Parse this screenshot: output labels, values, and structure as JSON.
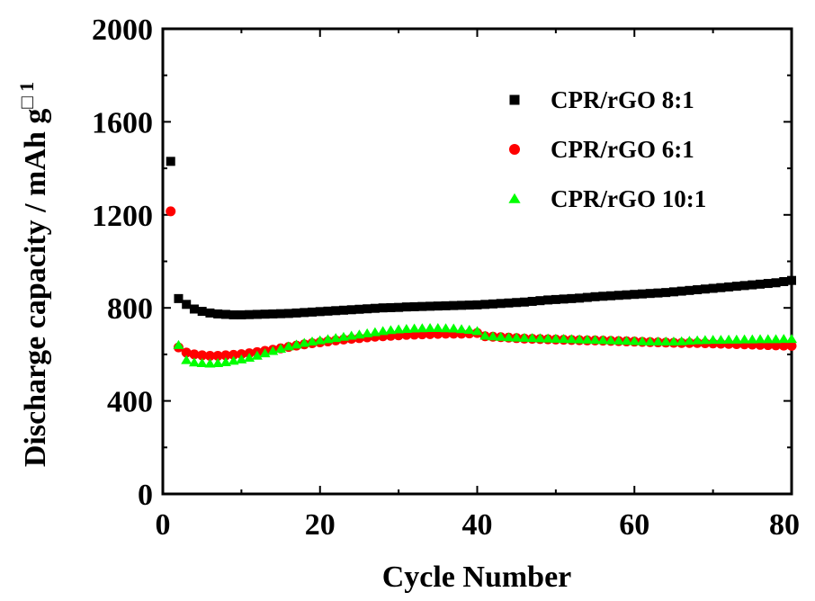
{
  "chart_data": {
    "type": "scatter",
    "xlabel": "Cycle Number",
    "ylabel": "Discharge capacity / mAh g",
    "ylabel_suffix": "□ 1",
    "xlim": [
      0,
      80
    ],
    "ylim": [
      0,
      2000
    ],
    "x_ticks": [
      0,
      20,
      40,
      60,
      80
    ],
    "y_ticks": [
      0,
      400,
      800,
      1200,
      1600,
      2000
    ],
    "x_tick_labels": [
      "0",
      "20",
      "40",
      "60",
      "80"
    ],
    "y_tick_labels": [
      "0",
      "400",
      "800",
      "1200",
      "1600",
      "2000"
    ],
    "grid": false,
    "legend_position": "top-right",
    "series": [
      {
        "name": "CPR/rGO 8:1",
        "marker": "square",
        "color": "#000000",
        "x": [
          1,
          2,
          3,
          4,
          5,
          6,
          7,
          8,
          9,
          10,
          11,
          12,
          13,
          14,
          15,
          16,
          17,
          18,
          19,
          20,
          21,
          22,
          23,
          24,
          25,
          26,
          27,
          28,
          29,
          30,
          31,
          32,
          33,
          34,
          35,
          36,
          37,
          38,
          39,
          40,
          41,
          42,
          43,
          44,
          45,
          46,
          47,
          48,
          49,
          50,
          51,
          52,
          53,
          54,
          55,
          56,
          57,
          58,
          59,
          60,
          61,
          62,
          63,
          64,
          65,
          66,
          67,
          68,
          69,
          70,
          71,
          72,
          73,
          74,
          75,
          76,
          77,
          78,
          79,
          80
        ],
        "y": [
          1430,
          840,
          815,
          795,
          785,
          778,
          774,
          772,
          770,
          770,
          771,
          772,
          773,
          774,
          775,
          776,
          778,
          780,
          782,
          784,
          786,
          788,
          790,
          792,
          794,
          796,
          798,
          800,
          801,
          802,
          804,
          805,
          806,
          807,
          808,
          809,
          810,
          811,
          812,
          813,
          815,
          817,
          819,
          821,
          823,
          825,
          828,
          831,
          834,
          836,
          838,
          840,
          842,
          845,
          848,
          850,
          852,
          854,
          856,
          858,
          860,
          862,
          864,
          866,
          869,
          872,
          875,
          878,
          881,
          884,
          887,
          890,
          893,
          896,
          899,
          902,
          905,
          908,
          913,
          918
        ]
      },
      {
        "name": "CPR/rGO 6:1",
        "marker": "circle",
        "color": "#ff0000",
        "x": [
          1,
          2,
          3,
          4,
          5,
          6,
          7,
          8,
          9,
          10,
          11,
          12,
          13,
          14,
          15,
          16,
          17,
          18,
          19,
          20,
          21,
          22,
          23,
          24,
          25,
          26,
          27,
          28,
          29,
          30,
          31,
          32,
          33,
          34,
          35,
          36,
          37,
          38,
          39,
          40,
          41,
          42,
          43,
          44,
          45,
          46,
          47,
          48,
          49,
          50,
          51,
          52,
          53,
          54,
          55,
          56,
          57,
          58,
          59,
          60,
          61,
          62,
          63,
          64,
          65,
          66,
          67,
          68,
          69,
          70,
          71,
          72,
          73,
          74,
          75,
          76,
          77,
          78,
          79,
          80
        ],
        "y": [
          1215,
          630,
          608,
          600,
          596,
          594,
          594,
          596,
          598,
          601,
          605,
          610,
          615,
          620,
          626,
          632,
          638,
          643,
          648,
          652,
          656,
          660,
          664,
          667,
          670,
          673,
          676,
          678,
          680,
          682,
          684,
          685,
          686,
          687,
          688,
          689,
          689,
          689,
          690,
          692,
          678,
          676,
          674,
          672,
          670,
          668,
          667,
          666,
          665,
          664,
          663,
          662,
          661,
          660,
          660,
          659,
          658,
          657,
          656,
          655,
          654,
          653,
          652,
          651,
          650,
          649,
          649,
          649,
          648,
          647,
          646,
          645,
          644,
          643,
          642,
          641,
          640,
          639,
          638,
          637
        ]
      },
      {
        "name": "CPR/rGO 10:1",
        "marker": "triangle",
        "color": "#00ff00",
        "x": [
          2,
          3,
          4,
          5,
          6,
          7,
          8,
          9,
          10,
          11,
          12,
          13,
          14,
          15,
          16,
          17,
          18,
          19,
          20,
          21,
          22,
          23,
          24,
          25,
          26,
          27,
          28,
          29,
          30,
          31,
          32,
          33,
          34,
          35,
          36,
          37,
          38,
          39,
          40,
          41,
          42,
          43,
          44,
          45,
          46,
          47,
          48,
          49,
          50,
          51,
          52,
          53,
          54,
          55,
          56,
          57,
          58,
          59,
          60,
          61,
          62,
          63,
          64,
          65,
          66,
          67,
          68,
          69,
          70,
          71,
          72,
          73,
          74,
          75,
          76,
          77,
          78,
          79,
          80
        ],
        "y": [
          640,
          575,
          565,
          562,
          560,
          562,
          566,
          572,
          578,
          585,
          594,
          604,
          614,
          624,
          634,
          642,
          649,
          655,
          660,
          665,
          670,
          675,
          680,
          685,
          690,
          695,
          700,
          704,
          707,
          709,
          711,
          712,
          713,
          713,
          712,
          711,
          708,
          705,
          700,
          680,
          677,
          675,
          673,
          672,
          671,
          670,
          669,
          668,
          667,
          666,
          665,
          664,
          663,
          662,
          661,
          660,
          659,
          658,
          657,
          656,
          655,
          655,
          655,
          655,
          656,
          658,
          660,
          661,
          662,
          662,
          663,
          663,
          664,
          664,
          665,
          665,
          665,
          666,
          666
        ]
      }
    ]
  }
}
